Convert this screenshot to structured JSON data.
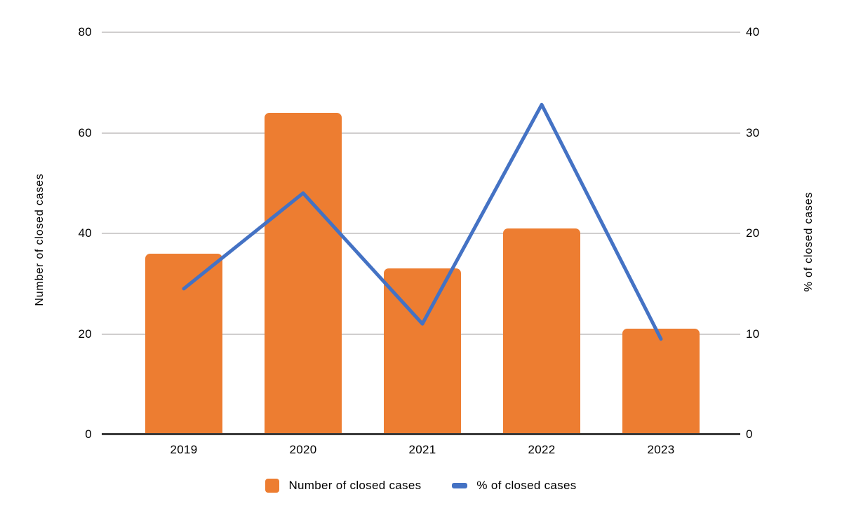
{
  "chart_data": {
    "type": "bar+line combo",
    "categories": [
      "2019",
      "2020",
      "2021",
      "2022",
      "2023"
    ],
    "series": [
      {
        "name": "Number of closed cases",
        "type": "bar",
        "axis": "left",
        "color": "#ED7D31",
        "values": [
          36,
          64,
          33,
          41,
          21
        ]
      },
      {
        "name": "% of closed cases",
        "type": "line",
        "axis": "right",
        "color": "#4472C4",
        "values": [
          14.5,
          24,
          11,
          32.8,
          9.5
        ]
      }
    ],
    "title": "",
    "xlabel": "",
    "ylabel_left": "Number of closed cases",
    "ylabel_right": "% of closed cases",
    "axes": {
      "left": {
        "min": 0,
        "max": 80,
        "ticks": [
          0,
          20,
          40,
          60,
          80
        ]
      },
      "right": {
        "min": 0,
        "max": 40,
        "ticks": [
          0,
          10,
          20,
          30,
          40
        ]
      }
    },
    "grid": "horizontal gridlines on",
    "legend_position": "bottom center",
    "colors": {
      "bar": "#ED7D31",
      "line": "#4472C4",
      "gridline": "#D0CECE",
      "axis_line": "#3a3a3a",
      "text": "#000000"
    }
  }
}
